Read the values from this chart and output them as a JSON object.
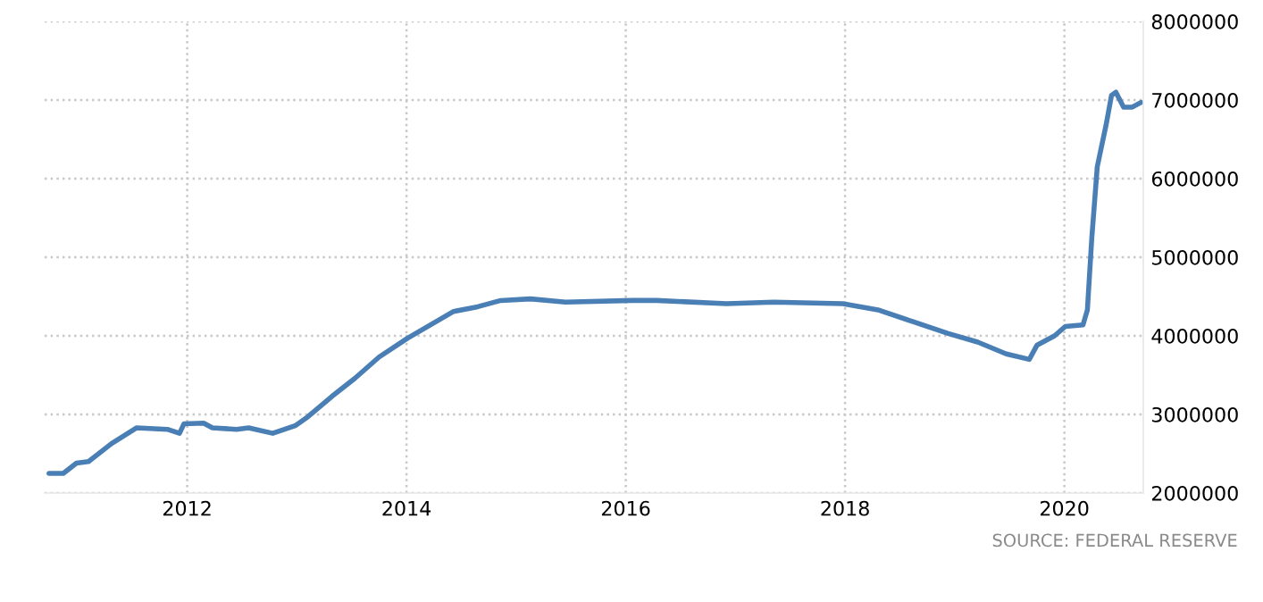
{
  "chart_data": {
    "type": "line",
    "x": [
      2010.74,
      2010.87,
      2010.99,
      2011.1,
      2011.31,
      2011.54,
      2011.82,
      2011.93,
      2011.97,
      2012.15,
      2012.23,
      2012.45,
      2012.56,
      2012.78,
      2012.99,
      2013.1,
      2013.32,
      2013.53,
      2013.75,
      2014.01,
      2014.22,
      2014.43,
      2014.65,
      2014.86,
      2015.13,
      2015.45,
      2016.06,
      2016.28,
      2016.92,
      2017.35,
      2017.98,
      2018.3,
      2018.62,
      2018.94,
      2019.21,
      2019.47,
      2019.68,
      2019.75,
      2019.91,
      2020.01,
      2020.17,
      2020.21,
      2020.25,
      2020.3,
      2020.38,
      2020.43,
      2020.47,
      2020.54,
      2020.62,
      2020.7
    ],
    "series": [
      {
        "color": "#4a7fb5",
        "values": [
          2250000,
          2250000,
          2380000,
          2400000,
          2630000,
          2830000,
          2810000,
          2760000,
          2880000,
          2890000,
          2830000,
          2810000,
          2830000,
          2760000,
          2860000,
          2970000,
          3230000,
          3460000,
          3730000,
          3970000,
          4140000,
          4310000,
          4370000,
          4450000,
          4470000,
          4430000,
          4450000,
          4450000,
          4410000,
          4430000,
          4410000,
          4330000,
          4180000,
          4030000,
          3920000,
          3770000,
          3700000,
          3880000,
          4000000,
          4120000,
          4140000,
          4330000,
          5240000,
          6150000,
          6680000,
          7060000,
          7100000,
          6910000,
          6910000,
          6970000
        ]
      }
    ],
    "xlim": [
      2010.7,
      2020.72
    ],
    "xticks": [
      2012,
      2014,
      2016,
      2018,
      2020
    ],
    "ylim": [
      2000000,
      8000000
    ],
    "yticks": [
      2000000,
      3000000,
      4000000,
      5000000,
      6000000,
      7000000,
      8000000
    ],
    "grid": true,
    "annotations": [
      "SOURCE: FEDERAL RESERVE"
    ]
  }
}
